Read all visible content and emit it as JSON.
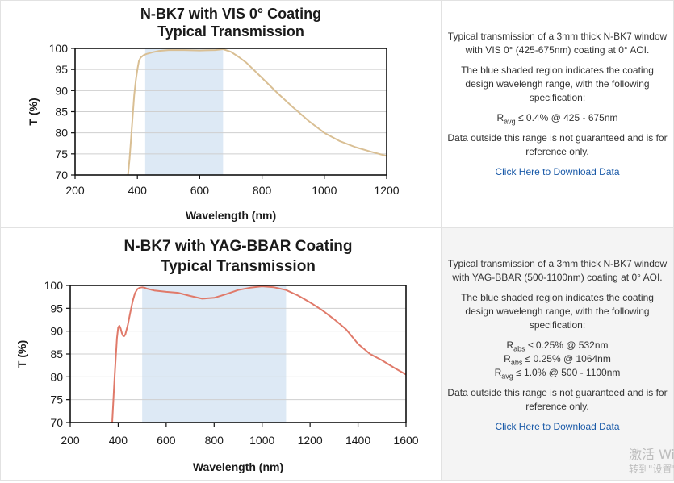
{
  "chart_data": [
    {
      "type": "line",
      "title": "N-BK7 with VIS 0° Coating",
      "subtitle": "Typical Transmission",
      "xlabel": "Wavelength (nm)",
      "ylabel": "T (%)",
      "xlim": [
        200,
        1200
      ],
      "ylim": [
        70,
        100
      ],
      "xticks": [
        200,
        400,
        600,
        800,
        1000,
        1200
      ],
      "yticks": [
        70,
        75,
        80,
        85,
        90,
        95,
        100
      ],
      "grid": true,
      "shaded_region": [
        425,
        675
      ],
      "series": [
        {
          "color": "#d9bf94",
          "x": [
            370,
            375,
            380,
            385,
            390,
            395,
            400,
            405,
            410,
            420,
            430,
            450,
            470,
            500,
            550,
            600,
            650,
            675,
            700,
            725,
            750,
            800,
            850,
            900,
            950,
            1000,
            1050,
            1100,
            1150,
            1200
          ],
          "y": [
            70.0,
            74.0,
            79.0,
            84.0,
            89.0,
            92.5,
            95.0,
            97.0,
            97.8,
            98.4,
            98.7,
            99.1,
            99.4,
            99.6,
            99.6,
            99.5,
            99.6,
            99.8,
            99.2,
            98.0,
            96.6,
            93.0,
            89.4,
            86.0,
            82.8,
            80.0,
            78.0,
            76.6,
            75.5,
            74.5
          ]
        }
      ]
    },
    {
      "type": "line",
      "title": "N-BK7 with YAG-BBAR Coating",
      "subtitle": "Typical Transmission",
      "xlabel": "Wavelength (nm)",
      "ylabel": "T (%)",
      "xlim": [
        200,
        1600
      ],
      "ylim": [
        70,
        100
      ],
      "xticks": [
        200,
        400,
        600,
        800,
        1000,
        1200,
        1400,
        1600
      ],
      "yticks": [
        70,
        75,
        80,
        85,
        90,
        95,
        100
      ],
      "grid": true,
      "shaded_region": [
        500,
        1100
      ],
      "series": [
        {
          "color": "#e07a6a",
          "x": [
            375,
            380,
            385,
            390,
            395,
            400,
            405,
            410,
            415,
            420,
            425,
            430,
            440,
            450,
            460,
            470,
            480,
            490,
            500,
            510,
            520,
            550,
            600,
            650,
            700,
            750,
            800,
            850,
            900,
            950,
            1000,
            1050,
            1100,
            1150,
            1200,
            1250,
            1300,
            1350,
            1400,
            1450,
            1500,
            1550,
            1600
          ],
          "y": [
            70.0,
            75.0,
            80.0,
            84.5,
            88.5,
            90.8,
            91.2,
            90.6,
            89.6,
            89.0,
            88.9,
            89.3,
            91.3,
            94.0,
            96.5,
            98.3,
            99.2,
            99.5,
            99.6,
            99.5,
            99.3,
            98.9,
            98.6,
            98.4,
            97.7,
            97.1,
            97.3,
            98.1,
            99.0,
            99.5,
            99.8,
            99.6,
            99.0,
            97.8,
            96.3,
            94.6,
            92.6,
            90.4,
            87.2,
            85.0,
            83.6,
            82.0,
            80.5
          ]
        }
      ]
    }
  ],
  "descriptions": [
    {
      "intro": "Typical transmission of a 3mm thick N-BK7 window with VIS 0° (425-675nm) coating at 0° AOI.",
      "shaded_note": "The blue shaded region indicates the coating design wavelengh range, with the following specification:",
      "specs": [
        {
          "prefix": "R",
          "sub": "avg",
          "text": " ≤ 0.4% @ 425 - 675nm"
        }
      ],
      "disclaimer": "Data outside this range is not guaranteed and is for reference only.",
      "download": "Click Here to Download Data"
    },
    {
      "intro": "Typical transmission of a 3mm thick N-BK7 window with YAG-BBAR (500-1100nm) coating at 0° AOI.",
      "shaded_note": "The blue shaded region indicates the coating design wavelengh range, with the following specification:",
      "specs": [
        {
          "prefix": "R",
          "sub": "abs",
          "text": " ≤ 0.25% @ 532nm"
        },
        {
          "prefix": "R",
          "sub": "abs",
          "text": " ≤ 0.25% @ 1064nm"
        },
        {
          "prefix": "R",
          "sub": "avg",
          "text": " ≤ 1.0% @ 500 - 1100nm"
        }
      ],
      "disclaimer": "Data outside this range is not guaranteed and is for reference only.",
      "download": "Click Here to Download Data"
    }
  ],
  "watermark": {
    "line1": "激活 Windows",
    "line2": "转到\"设置\"以激活 Windows。"
  }
}
